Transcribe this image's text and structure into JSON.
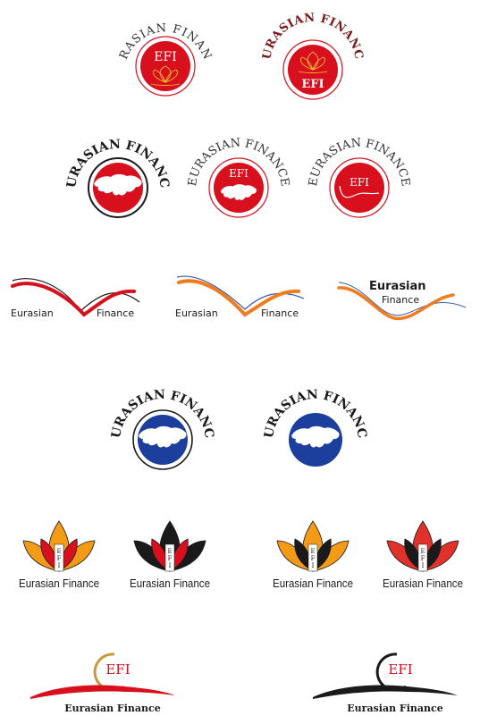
{
  "brand_name": "EURASIAN FINANCE",
  "monogram": "EFI",
  "monogram_vertical": [
    "E",
    "F",
    "I"
  ],
  "wave_left": "Eurasian",
  "wave_right": "Finance",
  "stacked_top": "Eurasian",
  "stacked_bottom": "Finance",
  "lotus_label": "Eurasian Finance",
  "swoosh_label": "Eurasian Finance",
  "colors": {
    "red": "#d8101e",
    "dark_red": "#7a1a1a",
    "orange": "#f07c1e",
    "blue": "#1c3f9e",
    "line_blue": "#3b5aa8",
    "black": "#1a1a1a",
    "gold": "#c69a3c",
    "lotus_orange": "#f39a16"
  }
}
